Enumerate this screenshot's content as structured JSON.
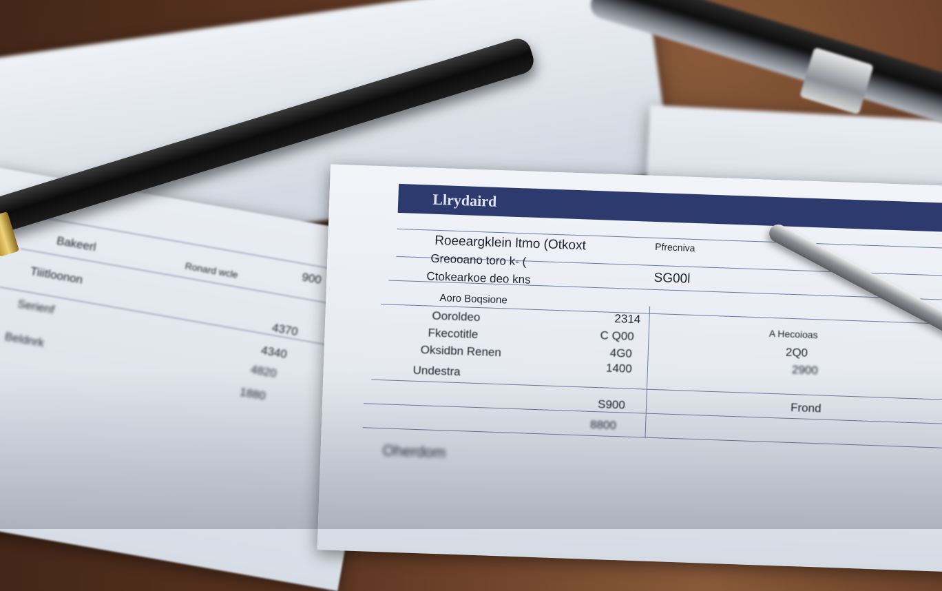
{
  "scene": {
    "document_header": "Llrydaird",
    "main_rows": [
      "Roeeargklein ltmo (Otkoxt",
      "Greooano toro k- (",
      "Ctokearkoe deo kns",
      "Aoro Boqsione",
      "Ooroldeo",
      "Fkecotitle",
      "Oksidbn Renen",
      "Undestra",
      "Oherdom"
    ],
    "main_values": [
      "2314",
      "C Q00",
      "4G0",
      "1400",
      "S900",
      "8800"
    ],
    "right_values": [
      "Pfrecniva",
      "SG00l",
      "A Hecoioas",
      "2Q0",
      "2900",
      "Frond"
    ],
    "left_rows": [
      "Bakeerl",
      "Ronard wcle",
      "Tiiitloonon",
      "Serienf",
      "Beldnrk"
    ],
    "left_values": [
      "900",
      "4370",
      "4340",
      "4820",
      "1880"
    ],
    "colors": {
      "header_bar": "#2c3a6e",
      "paper": "#eef1f5",
      "desk": "#5a3320"
    }
  }
}
